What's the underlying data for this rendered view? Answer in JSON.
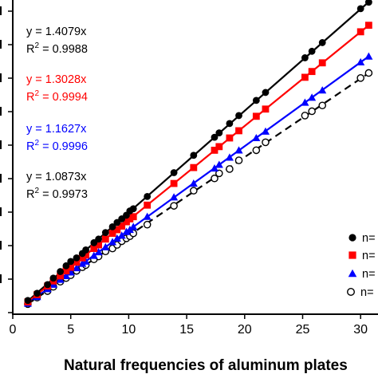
{
  "chart_data": {
    "type": "scatter",
    "xlabel": "Natural frequencies of aluminum plates",
    "ylabel": "",
    "xlim": [
      0,
      31.5
    ],
    "ylim": [
      0,
      43.5
    ],
    "xticks": [
      "0",
      "5",
      "10",
      "15",
      "20",
      "25",
      "30"
    ],
    "yticks": [
      "",
      "",
      "",
      "",
      "",
      "",
      "",
      "",
      "",
      ""
    ],
    "grid": false,
    "legend_position": "bottom-right",
    "series": [
      {
        "name": "n=",
        "color": "#000000",
        "marker": "filled-circle",
        "line_style": "solid",
        "fit_slope": 1.4079,
        "annotation": {
          "equation": "y = 1.4079x",
          "r2_prefix": "R",
          "r2_sup": "2",
          "r2_value": " = 0.9988"
        },
        "x": [
          1.3,
          2.1,
          3.0,
          3.5,
          4.1,
          4.6,
          5.0,
          5.5,
          6.0,
          6.3,
          7.0,
          7.4,
          8.0,
          8.6,
          9.0,
          9.4,
          9.8,
          10.1,
          10.4,
          11.6,
          13.9,
          15.6,
          17.4,
          17.8,
          18.7,
          19.5,
          21.0,
          21.8,
          25.2,
          25.8,
          26.7,
          30.0,
          30.7
        ],
        "y": [
          1.9,
          2.9,
          4.1,
          5.0,
          5.9,
          6.7,
          7.3,
          7.8,
          8.4,
          8.9,
          9.9,
          10.4,
          11.3,
          12.1,
          12.7,
          13.2,
          13.7,
          14.3,
          14.6,
          16.3,
          19.6,
          22.0,
          24.5,
          25.1,
          26.4,
          27.5,
          29.6,
          30.7,
          35.5,
          36.4,
          37.6,
          42.3,
          43.2
        ]
      },
      {
        "name": "n=",
        "color": "#ff0000",
        "marker": "filled-square",
        "line_style": "solid",
        "fit_slope": 1.3028,
        "annotation": {
          "equation": "y = 1.3028x",
          "r2_prefix": "R",
          "r2_sup": "2",
          "r2_value": " = 0.9994"
        },
        "x": [
          1.3,
          2.1,
          3.0,
          3.5,
          4.1,
          4.6,
          5.0,
          5.5,
          6.0,
          6.3,
          7.0,
          7.4,
          8.0,
          8.6,
          9.0,
          9.4,
          9.8,
          10.1,
          10.4,
          11.6,
          13.9,
          15.6,
          17.4,
          17.8,
          18.7,
          19.5,
          21.0,
          21.8,
          25.2,
          25.8,
          26.7,
          30.0,
          30.7
        ],
        "y": [
          1.7,
          2.7,
          3.9,
          4.6,
          5.3,
          6.0,
          6.5,
          7.2,
          7.8,
          8.2,
          9.1,
          9.6,
          10.4,
          11.2,
          11.7,
          12.2,
          12.8,
          13.2,
          13.5,
          15.1,
          18.1,
          20.3,
          22.7,
          23.2,
          24.4,
          25.4,
          27.4,
          28.4,
          32.8,
          33.6,
          34.8,
          39.1,
          40.0
        ]
      },
      {
        "name": "n=",
        "color": "#0000ff",
        "marker": "filled-triangle",
        "line_style": "solid",
        "fit_slope": 1.1627,
        "annotation": {
          "equation": "y = 1.1627x",
          "r2_prefix": "R",
          "r2_sup": "2",
          "r2_value": " = 0.9996"
        },
        "x": [
          1.3,
          2.1,
          3.0,
          3.5,
          4.1,
          4.6,
          5.0,
          5.5,
          6.0,
          6.3,
          7.0,
          7.4,
          8.0,
          8.6,
          9.0,
          9.4,
          9.8,
          10.1,
          10.4,
          11.6,
          13.9,
          15.6,
          17.4,
          17.8,
          18.7,
          19.5,
          21.0,
          21.8,
          25.2,
          25.8,
          26.7,
          30.0,
          30.7
        ],
        "y": [
          1.5,
          2.4,
          3.5,
          4.1,
          4.8,
          5.3,
          5.8,
          6.4,
          7.0,
          7.3,
          8.1,
          8.6,
          9.3,
          10.0,
          10.5,
          10.9,
          11.4,
          11.7,
          12.1,
          13.5,
          16.2,
          18.1,
          20.2,
          20.7,
          21.7,
          22.7,
          24.4,
          25.3,
          29.3,
          30.0,
          31.0,
          34.9,
          35.7
        ]
      },
      {
        "name": "n=",
        "color": "#000000",
        "marker": "open-circle",
        "line_style": "dashed",
        "fit_slope": 1.0873,
        "annotation": {
          "equation": "y = 1.0873x",
          "r2_prefix": "R",
          "r2_sup": "2",
          "r2_value": " = 0.9973"
        },
        "x": [
          1.3,
          2.1,
          3.0,
          3.5,
          4.1,
          4.6,
          5.0,
          5.5,
          6.0,
          6.3,
          7.0,
          7.4,
          8.0,
          8.6,
          9.0,
          9.4,
          9.8,
          10.1,
          10.4,
          11.6,
          13.9,
          15.6,
          17.4,
          17.8,
          18.7,
          19.5,
          21.0,
          21.8,
          25.2,
          25.8,
          26.7,
          30.0,
          30.7
        ],
        "y": [
          1.4,
          2.3,
          3.2,
          3.8,
          4.5,
          5.0,
          5.4,
          6.0,
          6.5,
          6.8,
          7.6,
          8.0,
          8.7,
          9.1,
          9.6,
          10.1,
          10.5,
          10.8,
          11.2,
          12.4,
          15.0,
          17.1,
          18.8,
          19.5,
          20.1,
          21.3,
          22.7,
          23.8,
          27.5,
          28.1,
          28.9,
          32.7,
          33.4
        ]
      }
    ]
  }
}
